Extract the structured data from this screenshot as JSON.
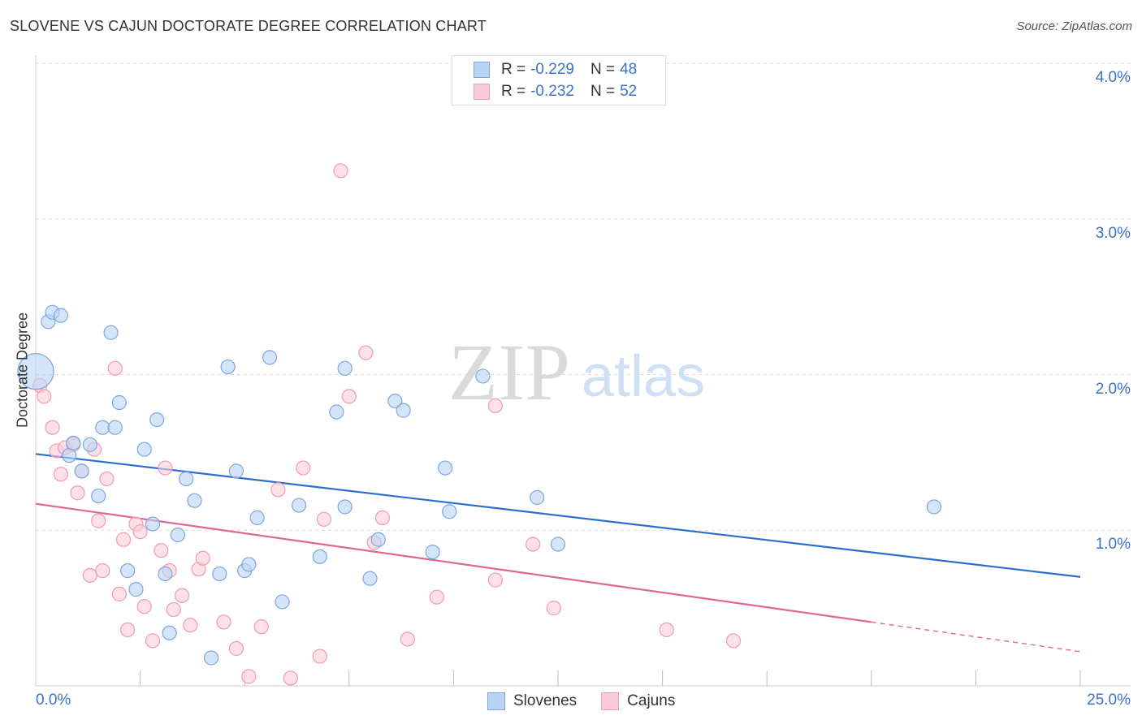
{
  "title": "SLOVENE VS CAJUN DOCTORATE DEGREE CORRELATION CHART",
  "source": "Source: ZipAtlas.com",
  "watermark": {
    "zip": "ZIP",
    "atlas": "atlas"
  },
  "legend": {
    "r_label": "R =",
    "n_label": "N =",
    "series": [
      {
        "r": "-0.229",
        "n": "48"
      },
      {
        "r": "-0.232",
        "n": "52"
      }
    ]
  },
  "colors": {
    "blue_fill": "#b9d3f5",
    "blue_stroke": "#7ea6dd",
    "blue_line": "#2a6fd0",
    "pink_fill": "#fbcbd8",
    "pink_stroke": "#ee9bb3",
    "pink_line": "#e0678f",
    "tick_text": "#3a72c9"
  },
  "chart_data": {
    "type": "scatter",
    "title": "SLOVENE VS CAJUN DOCTORATE DEGREE CORRELATION CHART",
    "ylabel": "Doctorate Degree",
    "xlabel": "",
    "xlim": [
      0,
      25
    ],
    "ylim": [
      0,
      4.0
    ],
    "x_tick_labels": [
      "0.0%",
      "25.0%"
    ],
    "y_ticks": [
      {
        "value": 1.0,
        "label": "1.0%"
      },
      {
        "value": 2.0,
        "label": "2.0%"
      },
      {
        "value": 3.0,
        "label": "3.0%"
      },
      {
        "value": 4.0,
        "label": "4.0%"
      }
    ],
    "series": [
      {
        "name": "Slovenes",
        "r": -0.229,
        "n": 48,
        "trend": {
          "x0": 0,
          "y0": 1.49,
          "x1": 25,
          "y1": 0.7
        },
        "points": [
          {
            "x": 0.0,
            "y": 2.02,
            "big": true
          },
          {
            "x": 0.3,
            "y": 2.34
          },
          {
            "x": 0.4,
            "y": 2.4
          },
          {
            "x": 0.6,
            "y": 2.38
          },
          {
            "x": 0.8,
            "y": 1.48
          },
          {
            "x": 0.9,
            "y": 1.56
          },
          {
            "x": 1.1,
            "y": 1.38
          },
          {
            "x": 1.3,
            "y": 1.55
          },
          {
            "x": 1.5,
            "y": 1.22
          },
          {
            "x": 1.6,
            "y": 1.66
          },
          {
            "x": 1.8,
            "y": 2.27
          },
          {
            "x": 1.9,
            "y": 1.66
          },
          {
            "x": 2.0,
            "y": 1.82
          },
          {
            "x": 2.2,
            "y": 0.74
          },
          {
            "x": 2.4,
            "y": 0.62
          },
          {
            "x": 2.6,
            "y": 1.52
          },
          {
            "x": 2.8,
            "y": 1.04
          },
          {
            "x": 2.9,
            "y": 1.71
          },
          {
            "x": 3.1,
            "y": 0.72
          },
          {
            "x": 3.2,
            "y": 0.34
          },
          {
            "x": 3.4,
            "y": 0.97
          },
          {
            "x": 3.6,
            "y": 1.33
          },
          {
            "x": 3.8,
            "y": 1.19
          },
          {
            "x": 4.2,
            "y": 0.18
          },
          {
            "x": 4.4,
            "y": 0.72
          },
          {
            "x": 4.6,
            "y": 2.05
          },
          {
            "x": 4.8,
            "y": 1.38
          },
          {
            "x": 5.0,
            "y": 0.74
          },
          {
            "x": 5.1,
            "y": 0.78
          },
          {
            "x": 5.3,
            "y": 1.08
          },
          {
            "x": 5.6,
            "y": 2.11
          },
          {
            "x": 5.9,
            "y": 0.54
          },
          {
            "x": 6.3,
            "y": 1.16
          },
          {
            "x": 6.8,
            "y": 0.83
          },
          {
            "x": 7.2,
            "y": 1.76
          },
          {
            "x": 7.4,
            "y": 2.04
          },
          {
            "x": 7.4,
            "y": 1.15
          },
          {
            "x": 8.0,
            "y": 0.69
          },
          {
            "x": 8.2,
            "y": 0.94
          },
          {
            "x": 8.6,
            "y": 1.83
          },
          {
            "x": 8.8,
            "y": 1.77
          },
          {
            "x": 9.5,
            "y": 0.86
          },
          {
            "x": 9.8,
            "y": 1.4
          },
          {
            "x": 9.9,
            "y": 1.12
          },
          {
            "x": 10.7,
            "y": 1.99
          },
          {
            "x": 12.0,
            "y": 1.21
          },
          {
            "x": 12.5,
            "y": 0.91
          },
          {
            "x": 21.5,
            "y": 1.15
          }
        ]
      },
      {
        "name": "Cajuns",
        "r": -0.232,
        "n": 52,
        "trend": {
          "x0": 0,
          "y0": 1.17,
          "x1": 20,
          "y1": 0.41,
          "dashed_to": {
            "x": 25,
            "y": 0.22
          }
        },
        "points": [
          {
            "x": 0.1,
            "y": 1.93
          },
          {
            "x": 0.2,
            "y": 1.86
          },
          {
            "x": 0.4,
            "y": 1.66
          },
          {
            "x": 0.5,
            "y": 1.51
          },
          {
            "x": 0.6,
            "y": 1.36
          },
          {
            "x": 0.7,
            "y": 1.53
          },
          {
            "x": 0.9,
            "y": 1.55
          },
          {
            "x": 1.0,
            "y": 1.24
          },
          {
            "x": 1.1,
            "y": 1.38
          },
          {
            "x": 1.3,
            "y": 0.71
          },
          {
            "x": 1.4,
            "y": 1.52
          },
          {
            "x": 1.5,
            "y": 1.06
          },
          {
            "x": 1.6,
            "y": 0.74
          },
          {
            "x": 1.7,
            "y": 1.33
          },
          {
            "x": 1.9,
            "y": 2.04
          },
          {
            "x": 2.0,
            "y": 0.59
          },
          {
            "x": 2.1,
            "y": 0.94
          },
          {
            "x": 2.2,
            "y": 0.36
          },
          {
            "x": 2.4,
            "y": 1.04
          },
          {
            "x": 2.5,
            "y": 0.99
          },
          {
            "x": 2.6,
            "y": 0.51
          },
          {
            "x": 2.8,
            "y": 0.29
          },
          {
            "x": 3.0,
            "y": 0.87
          },
          {
            "x": 3.1,
            "y": 1.4
          },
          {
            "x": 3.2,
            "y": 0.74
          },
          {
            "x": 3.3,
            "y": 0.49
          },
          {
            "x": 3.5,
            "y": 0.58
          },
          {
            "x": 3.7,
            "y": 0.39
          },
          {
            "x": 3.9,
            "y": 0.75
          },
          {
            "x": 4.0,
            "y": 0.82
          },
          {
            "x": 4.5,
            "y": 0.41
          },
          {
            "x": 4.8,
            "y": 0.24
          },
          {
            "x": 5.1,
            "y": 0.06
          },
          {
            "x": 5.4,
            "y": 0.38
          },
          {
            "x": 5.8,
            "y": 1.26
          },
          {
            "x": 6.1,
            "y": 0.05
          },
          {
            "x": 6.4,
            "y": 1.4
          },
          {
            "x": 6.8,
            "y": 0.19
          },
          {
            "x": 6.9,
            "y": 1.07
          },
          {
            "x": 7.3,
            "y": 3.31
          },
          {
            "x": 7.5,
            "y": 1.86
          },
          {
            "x": 7.9,
            "y": 2.14
          },
          {
            "x": 8.1,
            "y": 0.92
          },
          {
            "x": 8.3,
            "y": 1.08
          },
          {
            "x": 8.9,
            "y": 0.3
          },
          {
            "x": 9.6,
            "y": 0.57
          },
          {
            "x": 11.0,
            "y": 0.68
          },
          {
            "x": 11.0,
            "y": 1.8
          },
          {
            "x": 11.9,
            "y": 0.91
          },
          {
            "x": 12.4,
            "y": 0.5
          },
          {
            "x": 15.1,
            "y": 0.36
          },
          {
            "x": 16.7,
            "y": 0.29
          }
        ]
      }
    ]
  }
}
